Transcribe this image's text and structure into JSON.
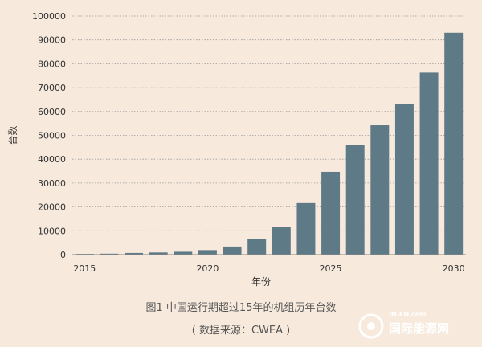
{
  "chart_data": {
    "type": "bar",
    "categories": [
      "2015",
      "2016",
      "2017",
      "2018",
      "2019",
      "2020",
      "2021",
      "2022",
      "2023",
      "2024",
      "2025",
      "2026",
      "2027",
      "2028",
      "2029",
      "2030"
    ],
    "values": [
      300,
      400,
      700,
      900,
      1200,
      1900,
      3400,
      6400,
      11600,
      21600,
      34700,
      46000,
      54200,
      63300,
      76300,
      93000
    ],
    "x_tick_labels": [
      "2015",
      "2020",
      "2025",
      "2030"
    ],
    "y_ticks": [
      0,
      10000,
      20000,
      30000,
      40000,
      50000,
      60000,
      70000,
      80000,
      90000,
      100000
    ],
    "xlabel": "年份",
    "ylabel": "台数",
    "ylim": [
      0,
      100000
    ],
    "grid": "horizontal dotted",
    "bar_color": "#5e7a87"
  },
  "caption": {
    "title": "图1 中国运行期超过15年的机组历年台数",
    "source": "( 数据来源：CWEA )"
  },
  "watermark": {
    "site": "IN-EN.com",
    "name": "国际能源网"
  }
}
